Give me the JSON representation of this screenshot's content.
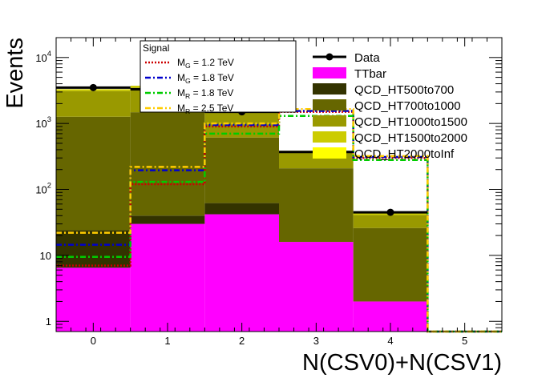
{
  "chart_data": {
    "type": "bar",
    "subtype": "stacked-histogram-log",
    "xlabel": "N(CSV0)+N(CSV1)",
    "ylabel": "Events",
    "x_bin_edges": [
      -0.5,
      0.5,
      1.5,
      2.5,
      3.5,
      4.5,
      5.5
    ],
    "xlim": [
      -0.5,
      5.5
    ],
    "ylim": [
      0.7,
      20000
    ],
    "log_y": true,
    "x_ticks": [
      "0",
      "1",
      "2",
      "3",
      "4",
      "5"
    ],
    "y_ticks": [
      {
        "label": "1",
        "value": 1
      },
      {
        "label": "10",
        "value": 10
      },
      {
        "label": "10",
        "exp": "2",
        "value": 100
      },
      {
        "label": "10",
        "exp": "3",
        "value": 1000
      },
      {
        "label": "10",
        "exp": "4",
        "value": 10000
      }
    ],
    "stack": [
      {
        "name": "TTbar",
        "color": "#ff00ff",
        "values": [
          6.5,
          30,
          42,
          16,
          2,
          0
        ]
      },
      {
        "name": "QCD_HT500to700",
        "color": "#333300",
        "values": [
          17.5,
          10,
          20,
          0,
          0,
          0
        ]
      },
      {
        "name": "QCD_HT700to1000",
        "color": "#666600",
        "values": [
          1240,
          1440,
          550,
          193,
          24,
          0
        ]
      },
      {
        "name": "QCD_HT1000to1500",
        "color": "#999900",
        "values": [
          1840,
          2020,
          1040,
          156,
          15,
          0
        ]
      },
      {
        "name": "QCD_HT1500to2000",
        "color": "#cccc00",
        "values": [
          200,
          230,
          150,
          20,
          3,
          0
        ]
      },
      {
        "name": "QCD_HT2000toInf",
        "color": "#ffff00",
        "values": [
          0,
          0,
          0,
          0,
          0,
          0
        ]
      }
    ],
    "data": {
      "name": "Data",
      "x": [
        0,
        1,
        2,
        3,
        4
      ],
      "y": [
        3500,
        3300,
        1500,
        370,
        45
      ]
    },
    "signals": [
      {
        "name": "M_G = 1.2 TeV",
        "sym": "M",
        "sub": "G",
        "rest": " = 1.2 TeV",
        "color": "#cc0000",
        "dash": "2,2",
        "values": [
          7,
          120,
          900,
          1500,
          300,
          0
        ]
      },
      {
        "name": "M_G = 1.8 TeV",
        "sym": "M",
        "sub": "G",
        "rest": " = 1.8 TeV",
        "color": "#0000cc",
        "dash": "7,3,2,3",
        "values": [
          14.5,
          195,
          950,
          1550,
          310,
          0
        ]
      },
      {
        "name": "M_R = 1.8 TeV",
        "sym": "M",
        "sub": "R",
        "rest": " = 1.8 TeV",
        "color": "#00cc00",
        "dash": "7,3,2,3",
        "values": [
          9.5,
          130,
          700,
          1300,
          280,
          0
        ]
      },
      {
        "name": "M_R = 2.5 TeV",
        "sym": "M",
        "sub": "R",
        "rest": " = 2.5 TeV",
        "color": "#ffcc00",
        "dash": "7,3,2,3",
        "values": [
          22,
          220,
          1000,
          1650,
          320,
          0
        ]
      }
    ],
    "signal_legend_title": "Signal",
    "legend_placement": "top-right",
    "signal_legend_placement": "top-center"
  }
}
